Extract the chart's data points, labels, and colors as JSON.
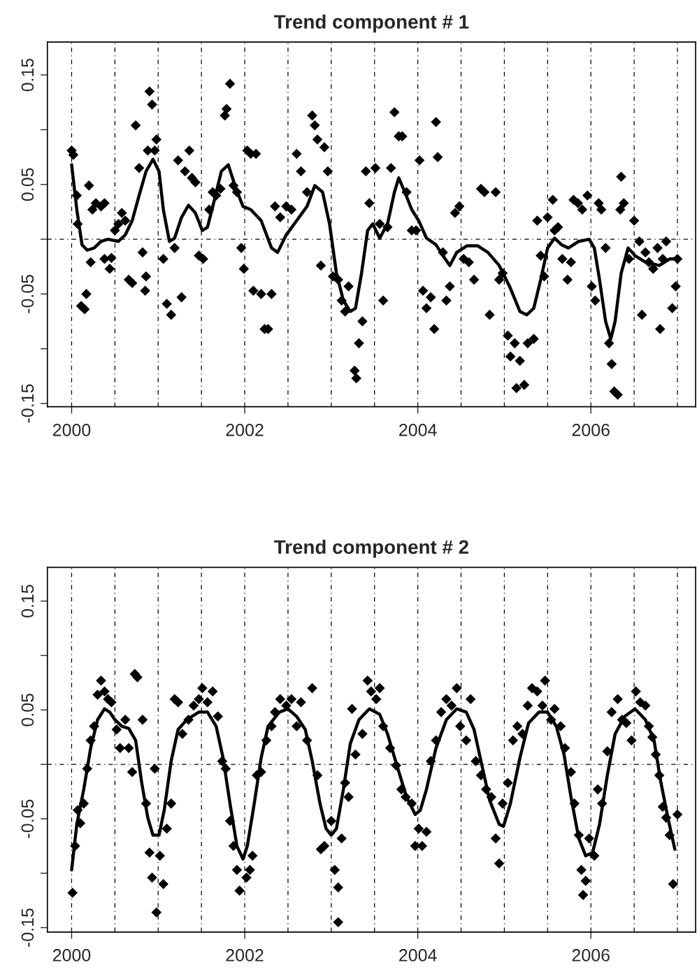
{
  "chart_data": [
    {
      "type": "scatter",
      "title": "Trend component # 1",
      "xlim": [
        1999.72,
        2007.21
      ],
      "ylim": [
        -0.153,
        0.18
      ],
      "xticks": [
        2000,
        2002,
        2004,
        2006
      ],
      "yticks": [
        -0.15,
        {
          "value": -0.1,
          "label": null
        },
        -0.05,
        {
          "value": 0,
          "label": null
        },
        0.05,
        {
          "value": 0.1,
          "label": null
        },
        0.15
      ],
      "grid": false,
      "legend": false,
      "ref_lines": [
        {
          "axis": "y",
          "value": 0,
          "color": "#000000",
          "line_style": "dashed"
        },
        {
          "axis": "x",
          "value": 2000,
          "color": "#000000",
          "line_style": "dashed"
        },
        {
          "axis": "x",
          "value": 2000.5,
          "color": "#000000",
          "line_style": "dashed"
        },
        {
          "axis": "x",
          "value": 2001,
          "color": "#000000",
          "line_style": "dashed"
        },
        {
          "axis": "x",
          "value": 2001.5,
          "color": "#000000",
          "line_style": "dashed"
        },
        {
          "axis": "x",
          "value": 2002,
          "color": "#000000",
          "line_style": "dashed"
        },
        {
          "axis": "x",
          "value": 2002.5,
          "color": "#000000",
          "line_style": "dashed"
        },
        {
          "axis": "x",
          "value": 2003,
          "color": "#000000",
          "line_style": "dashed"
        },
        {
          "axis": "x",
          "value": 2003.5,
          "color": "#000000",
          "line_style": "dashed"
        },
        {
          "axis": "x",
          "value": 2004,
          "color": "#000000",
          "line_style": "dashed"
        },
        {
          "axis": "x",
          "value": 2004.5,
          "color": "#000000",
          "line_style": "dashed"
        },
        {
          "axis": "x",
          "value": 2005,
          "color": "#000000",
          "line_style": "dashed"
        },
        {
          "axis": "x",
          "value": 2005.5,
          "color": "#000000",
          "line_style": "dashed"
        },
        {
          "axis": "x",
          "value": 2006,
          "color": "#000000",
          "line_style": "dashed"
        },
        {
          "axis": "x",
          "value": 2006.5,
          "color": "#000000",
          "line_style": "dashed"
        },
        {
          "axis": "x",
          "value": 2007,
          "color": "#000000",
          "line_style": "dashed"
        }
      ],
      "series": [
        {
          "marker": "diamond",
          "color": "#000000",
          "x": [
            2000.0,
            2000.02,
            2000.06,
            2000.07,
            2000.11,
            2000.15,
            2000.17,
            2000.2,
            2000.22,
            2000.24,
            2000.28,
            2000.34,
            2000.38,
            2000.38,
            2000.44,
            2000.46,
            2000.5,
            2000.54,
            2000.58,
            2000.62,
            2000.66,
            2000.7,
            2000.74,
            2000.78,
            2000.82,
            2000.85,
            2000.86,
            2000.88,
            2000.9,
            2000.93,
            2000.96,
            2000.98,
            2001.06,
            2001.1,
            2001.15,
            2001.19,
            2001.23,
            2001.27,
            2001.31,
            2001.36,
            2001.39,
            2001.43,
            2001.47,
            2001.52,
            2001.59,
            2001.63,
            2001.67,
            2001.72,
            2001.77,
            2001.79,
            2001.83,
            2001.87,
            2001.91,
            2001.96,
            2001.99,
            2002.03,
            2002.07,
            2002.1,
            2002.13,
            2002.19,
            2002.23,
            2002.27,
            2002.31,
            2002.35,
            2002.41,
            2002.48,
            2002.54,
            2002.6,
            2002.65,
            2002.72,
            2002.78,
            2002.81,
            2002.84,
            2002.88,
            2002.92,
            2002.96,
            2003.02,
            2003.08,
            2003.12,
            2003.16,
            2003.2,
            2003.27,
            2003.29,
            2003.32,
            2003.36,
            2003.4,
            2003.44,
            2003.51,
            2003.56,
            2003.6,
            2003.65,
            2003.69,
            2003.73,
            2003.78,
            2003.82,
            2003.87,
            2003.93,
            2003.98,
            2004.02,
            2004.06,
            2004.1,
            2004.15,
            2004.19,
            2004.21,
            2004.23,
            2004.29,
            2004.33,
            2004.37,
            2004.43,
            2004.48,
            2004.53,
            2004.59,
            2004.65,
            2004.73,
            2004.77,
            2004.83,
            2004.9,
            2004.94,
            2004.98,
            2005.04,
            2005.07,
            2005.12,
            2005.18,
            2005.14,
            2005.23,
            2005.27,
            2005.34,
            2005.38,
            2005.42,
            2005.46,
            2005.5,
            2005.56,
            2005.58,
            2005.62,
            2005.67,
            2005.73,
            2005.77,
            2005.8,
            2005.85,
            2005.9,
            2005.96,
            2006.01,
            2006.05,
            2006.09,
            2006.12,
            2006.17,
            2006.21,
            2006.24,
            2006.27,
            2006.31,
            2006.34,
            2006.35,
            2006.38,
            2006.44,
            2006.5,
            2006.56,
            2006.59,
            2006.63,
            2006.67,
            2006.72,
            2006.77,
            2006.8,
            2006.83,
            2006.87,
            2006.94,
            2006.98,
            2007.0
          ],
          "values": [
            0.081,
            0.077,
            0.04,
            0.014,
            -0.061,
            -0.064,
            -0.05,
            0.049,
            -0.021,
            0.027,
            0.033,
            0.03,
            0.033,
            -0.018,
            -0.027,
            -0.017,
            0.008,
            0.014,
            0.024,
            0.017,
            -0.037,
            -0.04,
            0.104,
            0.065,
            -0.012,
            -0.047,
            -0.034,
            0.081,
            0.135,
            0.123,
            0.081,
            0.091,
            -0.018,
            -0.059,
            -0.069,
            -0.008,
            0.072,
            -0.053,
            0.062,
            0.081,
            0.056,
            0.052,
            -0.015,
            -0.018,
            0.027,
            0.043,
            0.04,
            0.046,
            0.113,
            0.119,
            0.142,
            0.049,
            0.043,
            -0.008,
            -0.027,
            0.081,
            0.078,
            -0.047,
            0.078,
            -0.05,
            -0.082,
            -0.082,
            -0.05,
            0.03,
            0.02,
            0.03,
            0.027,
            0.078,
            0.062,
            0.043,
            0.113,
            0.104,
            0.091,
            -0.024,
            0.084,
            0.062,
            -0.034,
            -0.037,
            -0.056,
            -0.066,
            -0.043,
            -0.12,
            -0.127,
            -0.095,
            -0.075,
            0.062,
            0.033,
            0.065,
            0.014,
            -0.056,
            0.011,
            0.065,
            0.116,
            0.094,
            0.094,
            0.043,
            0.008,
            0.008,
            0.072,
            -0.047,
            -0.063,
            -0.053,
            -0.082,
            0.107,
            0.075,
            -0.012,
            -0.056,
            -0.043,
            0.024,
            0.03,
            -0.018,
            -0.021,
            -0.037,
            0.046,
            0.043,
            -0.069,
            0.043,
            -0.037,
            -0.031,
            -0.088,
            -0.107,
            -0.095,
            -0.111,
            -0.136,
            -0.133,
            -0.095,
            -0.091,
            0.017,
            -0.015,
            -0.034,
            0.02,
            0.036,
            0.008,
            0.011,
            -0.018,
            -0.037,
            -0.021,
            0.036,
            0.033,
            0.027,
            0.04,
            -0.043,
            -0.056,
            0.033,
            0.027,
            -0.008,
            -0.095,
            -0.114,
            -0.139,
            -0.142,
            0.027,
            0.057,
            0.033,
            -0.018,
            0.017,
            -0.002,
            -0.069,
            -0.012,
            -0.021,
            -0.027,
            -0.008,
            -0.082,
            -0.018,
            -0.002,
            -0.063,
            -0.043,
            -0.018
          ]
        },
        {
          "type": "line",
          "marker": "none",
          "line_style": "solid",
          "color": "#000000",
          "x": [
            2000.0,
            2000.06,
            2000.12,
            2000.18,
            2000.26,
            2000.34,
            2000.42,
            2000.54,
            2000.62,
            2000.7,
            2000.78,
            2000.86,
            2000.94,
            2001.01,
            2001.06,
            2001.13,
            2001.19,
            2001.27,
            2001.35,
            2001.43,
            2001.51,
            2001.57,
            2001.65,
            2001.73,
            2001.81,
            2001.9,
            2001.98,
            2002.07,
            2002.19,
            2002.31,
            2002.38,
            2002.48,
            2002.6,
            2002.72,
            2002.81,
            2002.9,
            2002.98,
            2003.06,
            2003.14,
            2003.22,
            2003.28,
            2003.35,
            2003.42,
            2003.48,
            2003.56,
            2003.65,
            2003.73,
            2003.78,
            2003.85,
            2003.93,
            2004.01,
            2004.1,
            2004.21,
            2004.29,
            2004.37,
            2004.45,
            2004.57,
            2004.69,
            2004.81,
            2004.94,
            2005.06,
            2005.18,
            2005.26,
            2005.34,
            2005.42,
            2005.5,
            2005.58,
            2005.66,
            2005.74,
            2005.86,
            2005.98,
            2006.04,
            2006.1,
            2006.17,
            2006.23,
            2006.28,
            2006.35,
            2006.43,
            2006.51,
            2006.63,
            2006.79,
            2006.91,
            2007.0
          ],
          "values": [
            0.068,
            0.027,
            -0.005,
            -0.01,
            -0.008,
            -0.002,
            0.0,
            -0.002,
            0.004,
            0.017,
            0.04,
            0.062,
            0.073,
            0.062,
            0.027,
            -0.002,
            0.001,
            0.02,
            0.031,
            0.024,
            0.008,
            0.011,
            0.036,
            0.062,
            0.068,
            0.046,
            0.03,
            0.027,
            0.017,
            -0.008,
            -0.012,
            0.004,
            0.017,
            0.03,
            0.049,
            0.043,
            0.014,
            -0.031,
            -0.056,
            -0.066,
            -0.063,
            -0.031,
            0.008,
            0.014,
            0.001,
            0.014,
            0.043,
            0.056,
            0.043,
            0.027,
            0.017,
            0.001,
            -0.005,
            -0.015,
            -0.024,
            -0.012,
            -0.006,
            -0.006,
            -0.012,
            -0.024,
            -0.043,
            -0.066,
            -0.069,
            -0.063,
            -0.037,
            -0.008,
            0.001,
            -0.005,
            -0.008,
            -0.002,
            0.0,
            -0.008,
            -0.037,
            -0.075,
            -0.091,
            -0.075,
            -0.031,
            -0.008,
            -0.015,
            -0.021,
            -0.024,
            -0.018,
            -0.018
          ]
        }
      ]
    },
    {
      "type": "scatter",
      "title": "Trend component # 2",
      "xlim": [
        1999.72,
        2007.21
      ],
      "ylim": [
        -0.154,
        0.181
      ],
      "xticks": [
        2000,
        2002,
        2004,
        2006
      ],
      "yticks": [
        -0.15,
        {
          "value": -0.1,
          "label": null
        },
        -0.05,
        {
          "value": 0,
          "label": null
        },
        0.05,
        {
          "value": 0.1,
          "label": null
        },
        0.15
      ],
      "grid": false,
      "legend": false,
      "ref_lines": [
        {
          "axis": "y",
          "value": 0,
          "color": "#000000",
          "line_style": "dashed"
        },
        {
          "axis": "x",
          "value": 2000,
          "color": "#000000",
          "line_style": "dashed"
        },
        {
          "axis": "x",
          "value": 2000.5,
          "color": "#000000",
          "line_style": "dashed"
        },
        {
          "axis": "x",
          "value": 2001,
          "color": "#000000",
          "line_style": "dashed"
        },
        {
          "axis": "x",
          "value": 2001.5,
          "color": "#000000",
          "line_style": "dashed"
        },
        {
          "axis": "x",
          "value": 2002,
          "color": "#000000",
          "line_style": "dashed"
        },
        {
          "axis": "x",
          "value": 2002.5,
          "color": "#000000",
          "line_style": "dashed"
        },
        {
          "axis": "x",
          "value": 2003,
          "color": "#000000",
          "line_style": "dashed"
        },
        {
          "axis": "x",
          "value": 2003.5,
          "color": "#000000",
          "line_style": "dashed"
        },
        {
          "axis": "x",
          "value": 2004,
          "color": "#000000",
          "line_style": "dashed"
        },
        {
          "axis": "x",
          "value": 2004.5,
          "color": "#000000",
          "line_style": "dashed"
        },
        {
          "axis": "x",
          "value": 2005,
          "color": "#000000",
          "line_style": "dashed"
        },
        {
          "axis": "x",
          "value": 2005.5,
          "color": "#000000",
          "line_style": "dashed"
        },
        {
          "axis": "x",
          "value": 2006,
          "color": "#000000",
          "line_style": "dashed"
        },
        {
          "axis": "x",
          "value": 2006.5,
          "color": "#000000",
          "line_style": "dashed"
        },
        {
          "axis": "x",
          "value": 2007,
          "color": "#000000",
          "line_style": "dashed"
        }
      ],
      "series": [
        {
          "marker": "diamond",
          "color": "#000000",
          "x": [
            2000.01,
            2000.04,
            2000.07,
            2000.1,
            2000.14,
            2000.18,
            2000.22,
            2000.26,
            2000.3,
            2000.34,
            2000.38,
            2000.42,
            2000.46,
            2000.52,
            2000.56,
            2000.62,
            2000.66,
            2000.7,
            2000.73,
            2000.76,
            2000.82,
            2000.86,
            2000.9,
            2000.93,
            2000.96,
            2000.98,
            2001.02,
            2001.06,
            2001.1,
            2001.15,
            2001.19,
            2001.23,
            2001.28,
            2001.35,
            2001.41,
            2001.47,
            2001.51,
            2001.57,
            2001.63,
            2001.69,
            2001.74,
            2001.78,
            2001.83,
            2001.87,
            2001.91,
            2001.94,
            2002.02,
            2002.06,
            2002.09,
            2002.14,
            2002.19,
            2002.25,
            2002.31,
            2002.35,
            2002.41,
            2002.48,
            2002.54,
            2002.6,
            2002.65,
            2002.72,
            2002.78,
            2002.84,
            2002.88,
            2002.92,
            2003.0,
            2003.04,
            2003.08,
            2003.08,
            2003.12,
            2003.16,
            2003.2,
            2003.24,
            2003.28,
            2003.36,
            2003.42,
            2003.46,
            2003.52,
            2003.56,
            2003.6,
            2003.68,
            2003.75,
            2003.81,
            2003.86,
            2003.93,
            2003.97,
            2004.01,
            2004.05,
            2004.1,
            2004.15,
            2004.21,
            2004.27,
            2004.33,
            2004.39,
            2004.45,
            2004.49,
            2004.56,
            2004.61,
            2004.67,
            2004.73,
            2004.79,
            2004.85,
            2004.9,
            2004.94,
            2004.98,
            2005.04,
            2005.1,
            2005.15,
            2005.21,
            2005.27,
            2005.32,
            2005.38,
            2005.44,
            2005.47,
            2005.54,
            2005.58,
            2005.65,
            2005.7,
            2005.77,
            2005.81,
            2005.86,
            2005.89,
            2005.91,
            2005.94,
            2005.98,
            2006.04,
            2006.08,
            2006.13,
            2006.19,
            2006.24,
            2006.31,
            2006.36,
            2006.41,
            2006.47,
            2006.52,
            2006.57,
            2006.63,
            2006.67,
            2006.71,
            2006.75,
            2006.79,
            2006.83,
            2006.87,
            2006.91,
            2006.95,
            2007.0
          ],
          "values": [
            -0.118,
            -0.075,
            -0.042,
            -0.054,
            -0.036,
            -0.004,
            0.022,
            0.035,
            0.064,
            0.077,
            0.067,
            0.06,
            0.057,
            0.032,
            0.015,
            0.041,
            0.015,
            -0.007,
            0.083,
            0.08,
            0.041,
            -0.036,
            -0.081,
            -0.104,
            -0.004,
            -0.136,
            -0.084,
            -0.11,
            -0.059,
            -0.036,
            0.06,
            0.057,
            0.028,
            0.041,
            0.054,
            0.06,
            0.07,
            0.057,
            0.067,
            0.044,
            0.003,
            -0.004,
            -0.052,
            -0.075,
            -0.097,
            -0.116,
            -0.104,
            -0.097,
            -0.084,
            -0.01,
            -0.007,
            0.022,
            0.035,
            0.048,
            0.06,
            0.054,
            0.06,
            0.035,
            0.057,
            0.022,
            0.07,
            -0.01,
            -0.078,
            -0.075,
            -0.052,
            -0.097,
            -0.113,
            -0.145,
            -0.068,
            -0.017,
            -0.03,
            0.051,
            0.009,
            0.028,
            0.077,
            0.067,
            0.06,
            0.07,
            0.035,
            0.015,
            -0.001,
            -0.023,
            -0.03,
            -0.036,
            -0.075,
            -0.059,
            -0.075,
            -0.062,
            0.003,
            0.022,
            0.048,
            0.06,
            0.054,
            0.07,
            0.035,
            0.022,
            0.06,
            0.003,
            -0.01,
            -0.023,
            -0.03,
            -0.068,
            -0.091,
            -0.036,
            -0.017,
            0.022,
            0.035,
            0.028,
            0.054,
            0.07,
            0.067,
            0.054,
            0.077,
            0.041,
            0.051,
            0.035,
            0.015,
            -0.007,
            -0.036,
            -0.065,
            -0.097,
            -0.12,
            -0.107,
            -0.068,
            -0.084,
            -0.023,
            -0.036,
            0.012,
            0.048,
            0.06,
            0.041,
            0.038,
            0.022,
            0.067,
            0.057,
            0.054,
            0.035,
            0.025,
            0.009,
            -0.01,
            -0.039,
            -0.049,
            -0.065,
            -0.11,
            -0.046
          ]
        },
        {
          "type": "line",
          "marker": "none",
          "line_style": "solid",
          "color": "#000000",
          "x": [
            2000.0,
            2000.06,
            2000.14,
            2000.22,
            2000.3,
            2000.38,
            2000.44,
            2000.5,
            2000.58,
            2000.66,
            2000.74,
            2000.81,
            2000.88,
            2000.94,
            2001.01,
            2001.07,
            2001.15,
            2001.23,
            2001.33,
            2001.47,
            2001.57,
            2001.67,
            2001.75,
            2001.83,
            2001.91,
            2001.98,
            2002.03,
            2002.11,
            2002.19,
            2002.27,
            2002.4,
            2002.5,
            2002.6,
            2002.7,
            2002.78,
            2002.87,
            2002.94,
            2003.0,
            2003.06,
            2003.14,
            2003.22,
            2003.32,
            2003.44,
            2003.56,
            2003.65,
            2003.77,
            2003.87,
            2003.97,
            2004.03,
            2004.1,
            2004.21,
            2004.33,
            2004.45,
            2004.56,
            2004.65,
            2004.73,
            2004.83,
            2004.94,
            2004.99,
            2005.07,
            2005.18,
            2005.28,
            2005.4,
            2005.5,
            2005.6,
            2005.69,
            2005.77,
            2005.86,
            2005.94,
            2006.02,
            2006.1,
            2006.19,
            2006.28,
            2006.39,
            2006.51,
            2006.63,
            2006.73,
            2006.81,
            2006.89,
            2006.97
          ],
          "values": [
            -0.097,
            -0.055,
            -0.023,
            0.015,
            0.041,
            0.051,
            0.048,
            0.041,
            0.035,
            0.033,
            0.022,
            -0.017,
            -0.049,
            -0.065,
            -0.065,
            -0.042,
            0.003,
            0.032,
            0.041,
            0.048,
            0.048,
            0.035,
            0.006,
            -0.036,
            -0.075,
            -0.087,
            -0.075,
            -0.036,
            0.006,
            0.035,
            0.048,
            0.051,
            0.044,
            0.032,
            0.003,
            -0.036,
            -0.059,
            -0.065,
            -0.059,
            -0.023,
            0.019,
            0.041,
            0.051,
            0.046,
            0.028,
            -0.004,
            -0.03,
            -0.046,
            -0.042,
            -0.023,
            0.015,
            0.041,
            0.051,
            0.048,
            0.032,
            0.003,
            -0.033,
            -0.055,
            -0.057,
            -0.036,
            0.006,
            0.038,
            0.048,
            0.048,
            0.035,
            0.009,
            -0.03,
            -0.068,
            -0.084,
            -0.081,
            -0.055,
            -0.01,
            0.028,
            0.044,
            0.051,
            0.041,
            0.022,
            -0.017,
            -0.049,
            -0.078
          ]
        }
      ]
    }
  ]
}
